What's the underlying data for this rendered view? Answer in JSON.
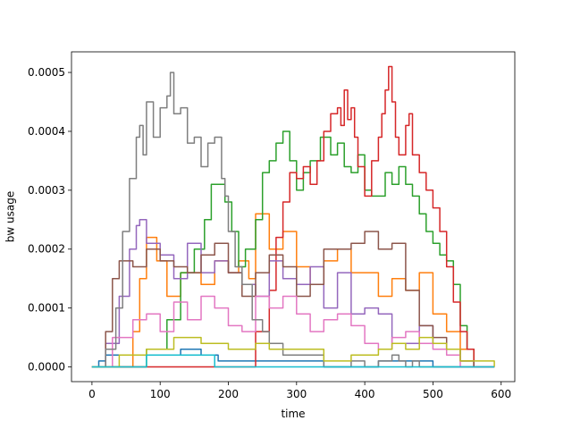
{
  "chart_data": {
    "type": "line",
    "title": "",
    "xlabel": "time",
    "ylabel": "bw usage",
    "xlim": [
      -30,
      620
    ],
    "ylim": [
      -2.5e-05,
      0.000535
    ],
    "xticks": [
      0,
      100,
      200,
      300,
      400,
      500,
      600
    ],
    "xtick_labels": [
      "0",
      "100",
      "200",
      "300",
      "400",
      "500",
      "600"
    ],
    "yticks": [
      0,
      0.0001,
      0.0002,
      0.0003,
      0.0004,
      0.0005
    ],
    "ytick_labels": [
      "0.0000",
      "0.0001",
      "0.0002",
      "0.0003",
      "0.0004",
      "0.0005"
    ],
    "grid": false,
    "legend": "none",
    "series": [
      {
        "color": "#1f77b4",
        "x": [
          0,
          10,
          20,
          60,
          100,
          130,
          160,
          175,
          185,
          200,
          260,
          300,
          340,
          380,
          420,
          480,
          500,
          520,
          540,
          550,
          590
        ],
        "y": [
          0,
          1e-05,
          2e-05,
          2e-05,
          2e-05,
          3e-05,
          2e-05,
          2e-05,
          1e-05,
          1e-05,
          1e-05,
          1e-05,
          0,
          0,
          1e-05,
          1e-05,
          0,
          0,
          0,
          0,
          0
        ]
      },
      {
        "color": "#ff7f0e",
        "x": [
          0,
          60,
          70,
          80,
          95,
          110,
          130,
          160,
          180,
          200,
          215,
          230,
          240,
          260,
          280,
          300,
          320,
          340,
          360,
          380,
          400,
          420,
          440,
          460,
          480,
          500,
          520,
          540,
          560,
          590
        ],
        "y": [
          0,
          6e-05,
          0.00015,
          0.00022,
          0.00018,
          0.00012,
          0.00016,
          0.00014,
          0.00018,
          0.00016,
          0.00018,
          0.00015,
          0.00026,
          0.0002,
          0.00023,
          0.00017,
          0.00014,
          0.00018,
          0.0002,
          0.00016,
          0.00016,
          0.00012,
          0.00015,
          0.00013,
          0.00016,
          9e-05,
          6e-05,
          3e-05,
          0,
          0
        ]
      },
      {
        "color": "#2ca02c",
        "x": [
          0,
          40,
          80,
          110,
          130,
          150,
          165,
          175,
          185,
          195,
          205,
          215,
          225,
          240,
          250,
          260,
          270,
          280,
          290,
          300,
          310,
          320,
          335,
          350,
          360,
          370,
          380,
          390,
          400,
          410,
          420,
          430,
          440,
          450,
          460,
          470,
          480,
          490,
          500,
          510,
          520,
          530,
          540,
          550,
          560,
          590
        ],
        "y": [
          0,
          0,
          3e-05,
          8e-05,
          0.00016,
          0.0002,
          0.00025,
          0.00031,
          0.00031,
          0.00028,
          0.00023,
          0.00017,
          0.0002,
          0.00025,
          0.00033,
          0.00035,
          0.00038,
          0.0004,
          0.00035,
          0.0003,
          0.00033,
          0.00035,
          0.00039,
          0.00036,
          0.00038,
          0.00034,
          0.00033,
          0.00036,
          0.0003,
          0.00029,
          0.00029,
          0.00033,
          0.00031,
          0.00034,
          0.00031,
          0.00029,
          0.00026,
          0.00023,
          0.00021,
          0.00019,
          0.00018,
          0.00014,
          7e-05,
          3e-05,
          0,
          0
        ]
      },
      {
        "color": "#d62728",
        "x": [
          0,
          100,
          200,
          240,
          260,
          270,
          280,
          290,
          300,
          310,
          320,
          330,
          340,
          350,
          360,
          365,
          370,
          375,
          380,
          385,
          390,
          400,
          410,
          420,
          425,
          430,
          435,
          440,
          445,
          450,
          460,
          465,
          470,
          480,
          490,
          500,
          510,
          520,
          530,
          540,
          550,
          560,
          590
        ],
        "y": [
          0,
          0,
          0,
          6e-05,
          0.00013,
          0.00022,
          0.00028,
          0.00033,
          0.00032,
          0.00034,
          0.00031,
          0.00035,
          0.0004,
          0.00043,
          0.00044,
          0.00041,
          0.00047,
          0.00042,
          0.00044,
          0.00039,
          0.00034,
          0.00029,
          0.00035,
          0.00039,
          0.00043,
          0.00047,
          0.00051,
          0.00045,
          0.00039,
          0.00036,
          0.00041,
          0.00043,
          0.00036,
          0.00033,
          0.0003,
          0.00027,
          0.00023,
          0.00017,
          0.00011,
          6e-05,
          3e-05,
          0,
          0
        ]
      },
      {
        "color": "#9467bd",
        "x": [
          0,
          20,
          40,
          55,
          65,
          70,
          80,
          100,
          120,
          140,
          160,
          180,
          200,
          220,
          240,
          260,
          280,
          300,
          320,
          340,
          360,
          380,
          400,
          420,
          440,
          460,
          480,
          500,
          520,
          540,
          560,
          590
        ],
        "y": [
          0,
          4e-05,
          0.00012,
          0.0002,
          0.00024,
          0.00025,
          0.00021,
          0.00019,
          0.00015,
          0.00021,
          0.00016,
          0.00018,
          0.00016,
          0.00014,
          0.00012,
          0.00018,
          0.00015,
          0.00014,
          0.00017,
          0.0001,
          0.00016,
          9e-05,
          0.0001,
          9e-05,
          4e-05,
          4e-05,
          7e-05,
          4e-05,
          3e-05,
          1e-05,
          0,
          0
        ]
      },
      {
        "color": "#8c564b",
        "x": [
          0,
          20,
          30,
          40,
          60,
          80,
          100,
          120,
          140,
          160,
          180,
          200,
          220,
          240,
          260,
          280,
          300,
          320,
          340,
          360,
          380,
          400,
          420,
          440,
          460,
          480,
          500,
          520,
          540,
          560,
          590
        ],
        "y": [
          0,
          6e-05,
          0.00015,
          0.00018,
          0.00017,
          0.0002,
          0.00018,
          0.00017,
          0.00016,
          0.00019,
          0.00021,
          0.00016,
          0.00012,
          0.00016,
          0.00019,
          0.00017,
          0.00012,
          0.00014,
          0.0002,
          0.0002,
          0.00021,
          0.00023,
          0.0002,
          0.00021,
          0.00013,
          7e-05,
          5e-05,
          3e-05,
          1e-05,
          0,
          0
        ]
      },
      {
        "color": "#e377c2",
        "x": [
          0,
          30,
          60,
          80,
          100,
          120,
          140,
          160,
          180,
          200,
          220,
          240,
          260,
          280,
          300,
          320,
          340,
          360,
          380,
          400,
          420,
          440,
          460,
          480,
          500,
          520,
          540,
          560,
          590
        ],
        "y": [
          0,
          5e-05,
          8e-05,
          9e-05,
          6e-05,
          0.00011,
          8e-05,
          0.00012,
          0.0001,
          7e-05,
          6e-05,
          0.00012,
          0.0001,
          0.00012,
          9e-05,
          6e-05,
          8e-05,
          9e-05,
          7e-05,
          4e-05,
          3e-05,
          5e-05,
          6e-05,
          4e-05,
          3e-05,
          2e-05,
          0,
          0,
          0
        ]
      },
      {
        "color": "#7f7f7f",
        "x": [
          0,
          20,
          35,
          45,
          55,
          65,
          70,
          75,
          80,
          90,
          100,
          110,
          115,
          120,
          130,
          140,
          150,
          160,
          170,
          180,
          190,
          195,
          200,
          210,
          220,
          235,
          250,
          260,
          280,
          300,
          320,
          340,
          360,
          380,
          400,
          420,
          440,
          450,
          460,
          470,
          480,
          500,
          540,
          590
        ],
        "y": [
          0,
          3e-05,
          0.0001,
          0.00023,
          0.00032,
          0.00039,
          0.00041,
          0.00036,
          0.00045,
          0.00039,
          0.00044,
          0.00046,
          0.0005,
          0.00043,
          0.00044,
          0.00038,
          0.00039,
          0.00034,
          0.00038,
          0.00039,
          0.00032,
          0.00029,
          0.00023,
          0.00017,
          0.00014,
          8e-05,
          6e-05,
          4e-05,
          2e-05,
          2e-05,
          2e-05,
          0,
          0,
          1e-05,
          0,
          1e-05,
          2e-05,
          1e-05,
          0,
          1e-05,
          0,
          0,
          0,
          0
        ]
      },
      {
        "color": "#bcbd22",
        "x": [
          0,
          40,
          80,
          120,
          160,
          200,
          240,
          260,
          300,
          340,
          380,
          420,
          440,
          460,
          480,
          500,
          520,
          540,
          590
        ],
        "y": [
          0,
          2e-05,
          3e-05,
          5e-05,
          4e-05,
          3e-05,
          4e-05,
          3e-05,
          3e-05,
          1e-05,
          2e-05,
          3e-05,
          4e-05,
          3e-05,
          5e-05,
          4e-05,
          3e-05,
          1e-05,
          0
        ]
      },
      {
        "color": "#17becf",
        "x": [
          0,
          75,
          80,
          90,
          120,
          150,
          175,
          180,
          590
        ],
        "y": [
          0,
          0,
          2e-05,
          2e-05,
          2e-05,
          2e-05,
          2e-05,
          0,
          0
        ]
      }
    ]
  }
}
